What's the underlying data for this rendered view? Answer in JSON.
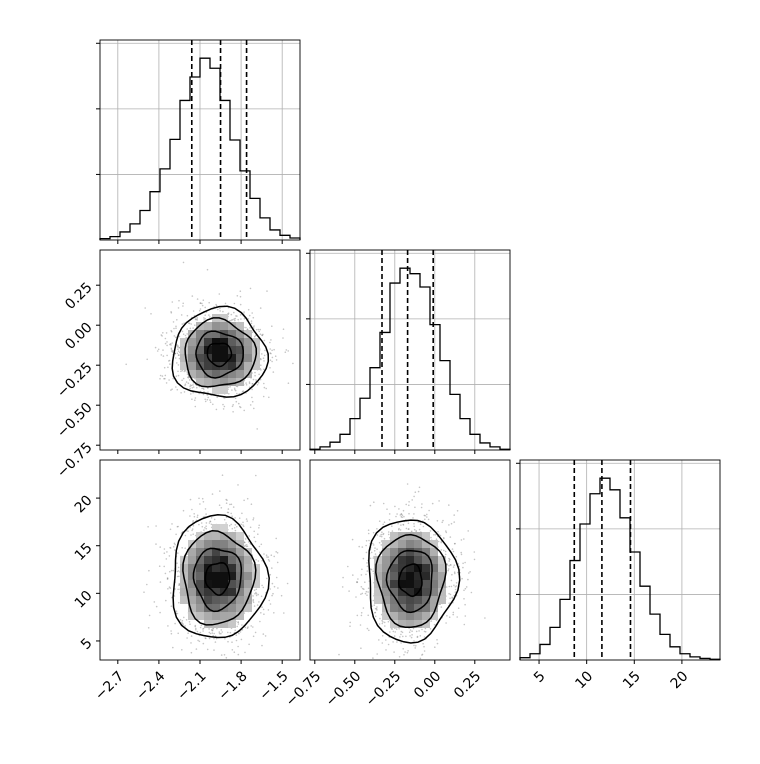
{
  "colors": {
    "ink": "#000000",
    "grid": "#b0b0b0",
    "scatter": "#7f7f7f",
    "background": "#ffffff"
  },
  "chart_data": {
    "type": "corner",
    "grid": true,
    "parameters": [
      {
        "range": [
          -2.83,
          -1.37
        ],
        "ticks": [
          -2.7,
          -2.4,
          -2.1,
          -1.8,
          -1.5
        ],
        "tick_labels": [
          "−2.7",
          "−2.4",
          "−2.1",
          "−1.8",
          "−1.5"
        ],
        "quantiles": [
          -2.16,
          -1.95,
          -1.76
        ]
      },
      {
        "range": [
          -0.78,
          0.47
        ],
        "ticks": [
          -0.75,
          -0.5,
          -0.25,
          0.0,
          0.25
        ],
        "tick_labels": [
          "−0.75",
          "−0.50",
          "−0.25",
          "0.00",
          "0.25"
        ],
        "quantiles": [
          -0.33,
          -0.17,
          -0.01
        ]
      },
      {
        "range": [
          3,
          24
        ],
        "ticks": [
          5,
          10,
          15,
          20
        ],
        "tick_labels": [
          "5",
          "10",
          "15",
          "20"
        ],
        "quantiles": [
          8.7,
          11.6,
          14.6
        ]
      }
    ],
    "histograms": [
      {
        "edges": [
          -2.83,
          -2.757,
          -2.684,
          -2.611,
          -2.538,
          -2.465,
          -2.392,
          -2.319,
          -2.246,
          -2.173,
          -2.1,
          -2.027,
          -1.954,
          -1.881,
          -1.808,
          -1.735,
          -1.662,
          -1.589,
          -1.516,
          -1.443,
          -1.37
        ],
        "counts": [
          2,
          5,
          12,
          24,
          44,
          72,
          106,
          150,
          208,
          243,
          271,
          256,
          208,
          149,
          103,
          62,
          33,
          15,
          7,
          3
        ]
      },
      {
        "edges": [
          -0.78,
          -0.7175,
          -0.655,
          -0.5925,
          -0.53,
          -0.4675,
          -0.405,
          -0.3425,
          -0.28,
          -0.2175,
          -0.155,
          -0.0925,
          -0.03,
          0.0325,
          0.095,
          0.1575,
          0.22,
          0.2825,
          0.345,
          0.4075,
          0.47
        ],
        "counts": [
          1,
          4,
          10,
          20,
          40,
          66,
          105,
          150,
          213,
          232,
          225,
          208,
          160,
          114,
          71,
          40,
          20,
          9,
          4,
          1
        ]
      },
      {
        "edges": [
          3,
          4.05,
          5.1,
          6.15,
          7.2,
          8.25,
          9.3,
          10.35,
          11.4,
          12.45,
          13.5,
          14.55,
          15.6,
          16.65,
          17.7,
          18.75,
          19.8,
          20.85,
          21.9,
          22.95,
          24
        ],
        "counts": [
          3,
          8,
          20,
          42,
          78,
          128,
          175,
          214,
          234,
          219,
          183,
          139,
          95,
          59,
          33,
          17,
          8,
          4,
          2,
          1
        ]
      }
    ],
    "density_2d": [
      {
        "x_index": 0,
        "y_index": 1,
        "center": [
          -1.96,
          -0.18
        ],
        "sigma": [
          0.16,
          0.13
        ],
        "correlation": 0.0
      },
      {
        "x_index": 0,
        "y_index": 2,
        "center": [
          -1.97,
          11.6
        ],
        "sigma": [
          0.16,
          3.0
        ],
        "correlation": 0.0
      },
      {
        "x_index": 1,
        "y_index": 2,
        "center": [
          -0.15,
          11.4
        ],
        "sigma": [
          0.13,
          3.0
        ],
        "correlation": -0.05
      }
    ]
  }
}
